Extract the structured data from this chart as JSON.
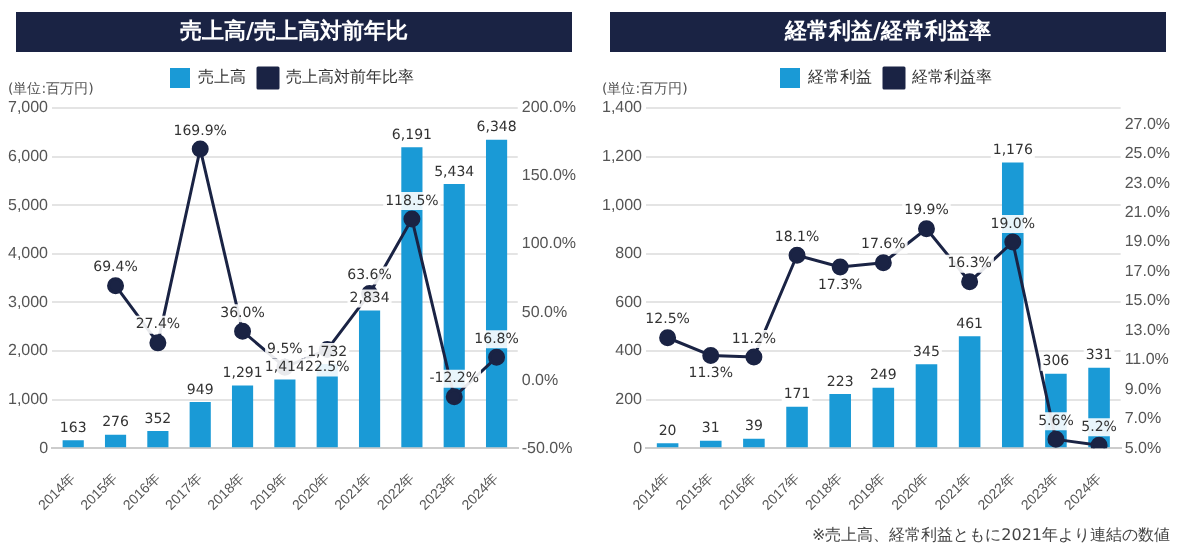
{
  "chart_data": [
    {
      "type": "bar",
      "title": "売上高/売上高対前年比",
      "ylabel": "(単位:百万円)",
      "categories": [
        "2014年",
        "2015年",
        "2016年",
        "2017年",
        "2018年",
        "2019年",
        "2020年",
        "2021年",
        "2022年",
        "2023年",
        "2024年"
      ],
      "series": [
        {
          "name": "売上高",
          "color": "#1a9ad6",
          "values": [
            163,
            276,
            352,
            949,
            1291,
            1414,
            1732,
            2834,
            6191,
            5434,
            6348
          ],
          "value_labels": [
            "163",
            "276",
            "352",
            "949",
            "1,291",
            "1,414",
            "1,732",
            "2,834",
            "6,191",
            "5,434",
            "6,348"
          ]
        },
        {
          "name": "売上高対前年比率",
          "type": "line",
          "axis": "y2",
          "color": "#1a2344",
          "values": [
            null,
            69.4,
            27.4,
            169.9,
            36.0,
            9.5,
            22.5,
            63.6,
            118.5,
            -12.2,
            16.8
          ],
          "value_labels": [
            null,
            "69.4%",
            "27.4%",
            "169.9%",
            "36.0%",
            "9.5%",
            "22.5%",
            "63.6%",
            "118.5%",
            "-12.2%",
            "16.8%"
          ]
        }
      ],
      "ylim": [
        0,
        7000
      ],
      "yticks": [
        0,
        {
          "value": 1000,
          "label": "1,000"
        },
        {
          "value": 2000,
          "label": "2,000"
        },
        {
          "value": 3000,
          "label": "3,000"
        },
        {
          "value": 4000,
          "label": "4,000"
        },
        {
          "value": 5000,
          "label": "5,000"
        },
        {
          "value": 6000,
          "label": "6,000"
        },
        {
          "value": 7000,
          "label": "7,000"
        }
      ],
      "y2lim": [
        -50,
        200
      ],
      "y2ticks": [
        {
          "value": -50,
          "label": "-50.0%"
        },
        {
          "value": 0,
          "label": "0.0%"
        },
        {
          "value": 50,
          "label": "50.0%"
        },
        {
          "value": 100,
          "label": "100.0%"
        },
        {
          "value": 150,
          "label": "150.0%"
        },
        {
          "value": 200,
          "label": "200.0%"
        }
      ],
      "grid": "y",
      "legend": "top",
      "marker": "circle"
    },
    {
      "type": "bar",
      "title": "経常利益/経常利益率",
      "ylabel": "(単位:百万円)",
      "categories": [
        "2014年",
        "2015年",
        "2016年",
        "2017年",
        "2018年",
        "2019年",
        "2020年",
        "2021年",
        "2022年",
        "2023年",
        "2024年"
      ],
      "series": [
        {
          "name": "経常利益",
          "color": "#1a9ad6",
          "values": [
            20,
            31,
            39,
            171,
            223,
            249,
            345,
            461,
            1176,
            306,
            331
          ],
          "value_labels": [
            "20",
            "31",
            "39",
            "171",
            "223",
            "249",
            "345",
            "461",
            "1,176",
            "306",
            "331"
          ]
        },
        {
          "name": "経常利益率",
          "type": "line",
          "axis": "y2",
          "color": "#1a2344",
          "values": [
            12.5,
            11.3,
            11.2,
            18.1,
            17.3,
            17.6,
            19.9,
            16.3,
            19.0,
            5.6,
            5.2
          ],
          "value_labels": [
            "12.5%",
            "11.3%",
            "11.2%",
            "18.1%",
            "17.3%",
            "17.6%",
            "19.9%",
            "16.3%",
            "19.0%",
            "5.6%",
            "5.2%"
          ]
        }
      ],
      "ylim": [
        0,
        1400
      ],
      "yticks": [
        0,
        200,
        400,
        600,
        800,
        {
          "value": 1000,
          "label": "1,000"
        },
        {
          "value": 1200,
          "label": "1,200"
        },
        {
          "value": 1400,
          "label": "1,400"
        }
      ],
      "y2lim": [
        5,
        28.1
      ],
      "y2ticks": [
        {
          "value": 5,
          "label": "5.0%"
        },
        {
          "value": 7,
          "label": "7.0%"
        },
        {
          "value": 9,
          "label": "9.0%"
        },
        {
          "value": 11,
          "label": "11.0%"
        },
        {
          "value": 13,
          "label": "13.0%"
        },
        {
          "value": 15,
          "label": "15.0%"
        },
        {
          "value": 17,
          "label": "17.0%"
        },
        {
          "value": 19,
          "label": "19.0%"
        },
        {
          "value": 21,
          "label": "21.0%"
        },
        {
          "value": 23,
          "label": "23.0%"
        },
        {
          "value": 25,
          "label": "25.0%"
        },
        {
          "value": 27,
          "label": "27.0%"
        }
      ],
      "grid": "y",
      "legend": "top",
      "marker": "circle",
      "annotations": [
        "※売上高、経常利益ともに2021年より連結の数値"
      ]
    }
  ]
}
